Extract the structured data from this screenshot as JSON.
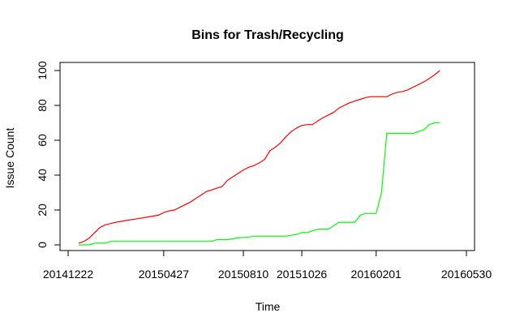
{
  "chart_data": {
    "type": "line",
    "title": "Bins for Trash/Recycling",
    "xlabel": "Time",
    "ylabel": "Issue Count",
    "xlim": [
      "2014-12-22",
      "2016-05-30"
    ],
    "ylim": [
      0,
      100
    ],
    "x_ticks": [
      "20141222",
      "20150427",
      "20150810",
      "20151026",
      "20160201",
      "20160530"
    ],
    "y_ticks": [
      "0",
      "20",
      "40",
      "60",
      "80",
      "100"
    ],
    "grid": false,
    "series": [
      {
        "color": "#ff0000",
        "points": [
          [
            "2015-01-05",
            1
          ],
          [
            "2015-01-12",
            2
          ],
          [
            "2015-01-19",
            4
          ],
          [
            "2015-01-26",
            7
          ],
          [
            "2015-02-02",
            10
          ],
          [
            "2015-02-09",
            11.5
          ],
          [
            "2015-02-23",
            13
          ],
          [
            "2015-03-09",
            14
          ],
          [
            "2015-03-23",
            15
          ],
          [
            "2015-04-06",
            16
          ],
          [
            "2015-04-20",
            17
          ],
          [
            "2015-04-27",
            18.5
          ],
          [
            "2015-05-04",
            19.5
          ],
          [
            "2015-05-11",
            20
          ],
          [
            "2015-05-18",
            21.5
          ],
          [
            "2015-05-25",
            23
          ],
          [
            "2015-06-01",
            24.5
          ],
          [
            "2015-06-08",
            26.5
          ],
          [
            "2015-06-15",
            28.5
          ],
          [
            "2015-06-22",
            30.5
          ],
          [
            "2015-06-29",
            31.5
          ],
          [
            "2015-07-06",
            32.5
          ],
          [
            "2015-07-13",
            33.5
          ],
          [
            "2015-07-20",
            37
          ],
          [
            "2015-07-27",
            39
          ],
          [
            "2015-08-03",
            41
          ],
          [
            "2015-08-10",
            43
          ],
          [
            "2015-08-17",
            44.5
          ],
          [
            "2015-08-24",
            45.5
          ],
          [
            "2015-08-31",
            47
          ],
          [
            "2015-09-07",
            49
          ],
          [
            "2015-09-14",
            54
          ],
          [
            "2015-09-21",
            56
          ],
          [
            "2015-09-28",
            58.5
          ],
          [
            "2015-10-05",
            62
          ],
          [
            "2015-10-12",
            65
          ],
          [
            "2015-10-19",
            67
          ],
          [
            "2015-10-26",
            68.5
          ],
          [
            "2015-11-02",
            69
          ],
          [
            "2015-11-09",
            69
          ],
          [
            "2015-11-16",
            71
          ],
          [
            "2015-11-23",
            73
          ],
          [
            "2015-11-30",
            74.5
          ],
          [
            "2015-12-07",
            76
          ],
          [
            "2015-12-14",
            78.5
          ],
          [
            "2015-12-21",
            80
          ],
          [
            "2015-12-28",
            81.5
          ],
          [
            "2016-01-04",
            82.5
          ],
          [
            "2016-01-11",
            83.5
          ],
          [
            "2016-01-18",
            84.5
          ],
          [
            "2016-01-25",
            85
          ],
          [
            "2016-02-01",
            85
          ],
          [
            "2016-02-08",
            85
          ],
          [
            "2016-02-15",
            85
          ],
          [
            "2016-02-22",
            86.5
          ],
          [
            "2016-02-29",
            87.5
          ],
          [
            "2016-03-07",
            88
          ],
          [
            "2016-03-14",
            89
          ],
          [
            "2016-03-21",
            90.5
          ],
          [
            "2016-03-28",
            92
          ],
          [
            "2016-04-04",
            93.5
          ],
          [
            "2016-04-11",
            95.5
          ],
          [
            "2016-04-18",
            97.5
          ],
          [
            "2016-04-25",
            100
          ]
        ]
      },
      {
        "color": "#00ff00",
        "points": [
          [
            "2015-01-05",
            0
          ],
          [
            "2015-01-19",
            0
          ],
          [
            "2015-01-26",
            1
          ],
          [
            "2015-02-09",
            1
          ],
          [
            "2015-02-16",
            2
          ],
          [
            "2015-06-15",
            2
          ],
          [
            "2015-06-29",
            2
          ],
          [
            "2015-07-06",
            3
          ],
          [
            "2015-07-20",
            3
          ],
          [
            "2015-07-27",
            3.5
          ],
          [
            "2015-08-03",
            4
          ],
          [
            "2015-08-17",
            4.5
          ],
          [
            "2015-08-24",
            5
          ],
          [
            "2015-10-05",
            5
          ],
          [
            "2015-10-19",
            6
          ],
          [
            "2015-10-26",
            7
          ],
          [
            "2015-11-02",
            7
          ],
          [
            "2015-11-09",
            8
          ],
          [
            "2015-11-16",
            9
          ],
          [
            "2015-11-30",
            9
          ],
          [
            "2015-12-07",
            11
          ],
          [
            "2015-12-14",
            13
          ],
          [
            "2015-12-28",
            13
          ],
          [
            "2016-01-04",
            13
          ],
          [
            "2016-01-11",
            17
          ],
          [
            "2016-01-18",
            18
          ],
          [
            "2016-01-25",
            18
          ],
          [
            "2016-02-01",
            18
          ],
          [
            "2016-02-08",
            30
          ],
          [
            "2016-02-15",
            64
          ],
          [
            "2016-02-22",
            64
          ],
          [
            "2016-03-21",
            64
          ],
          [
            "2016-03-28",
            65
          ],
          [
            "2016-04-04",
            66
          ],
          [
            "2016-04-11",
            69
          ],
          [
            "2016-04-18",
            70
          ],
          [
            "2016-04-25",
            70
          ]
        ]
      }
    ]
  }
}
